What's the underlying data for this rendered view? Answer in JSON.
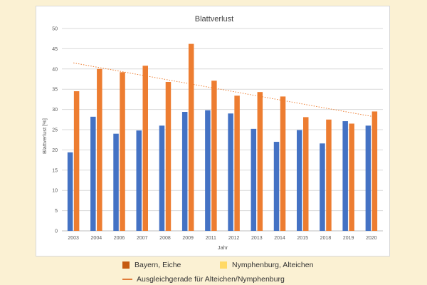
{
  "chart_data": {
    "type": "bar",
    "title": "Blattverlust",
    "xlabel": "Jahr",
    "ylabel": "Blattverlust [%]",
    "ylim": [
      0,
      50
    ],
    "yticks": [
      0,
      5,
      10,
      15,
      20,
      25,
      30,
      35,
      40,
      45,
      50
    ],
    "grid": true,
    "categories": [
      "2003",
      "2004",
      "2006",
      "2007",
      "2008",
      "2009",
      "2011",
      "2012",
      "2013",
      "2014",
      "2015",
      "2018",
      "2019",
      "2020"
    ],
    "series": [
      {
        "color": "#4472c4",
        "values": [
          19.4,
          28.2,
          24.0,
          24.8,
          26.0,
          29.4,
          29.8,
          29.0,
          25.2,
          22.0,
          24.9,
          21.6,
          27.1,
          26.0
        ]
      },
      {
        "color": "#ed7d31",
        "values": [
          34.5,
          40.0,
          39.2,
          40.8,
          36.8,
          46.2,
          37.1,
          33.4,
          34.3,
          33.2,
          28.1,
          27.5,
          26.5,
          29.5
        ]
      }
    ],
    "trendline": {
      "start": 41.5,
      "end": 28.3,
      "color": "#ed7d31",
      "style": "dotted"
    }
  },
  "legend": {
    "placement": "bottom",
    "items": [
      {
        "label": "Bayern, Eiche",
        "color": "#c55a11"
      },
      {
        "label": "Nymphenburg, Alteichen",
        "color": "#ffd966"
      },
      {
        "label": "Ausgleichgerade für Alteichen/Nymphenburg",
        "color": "#e07c3a"
      }
    ]
  }
}
